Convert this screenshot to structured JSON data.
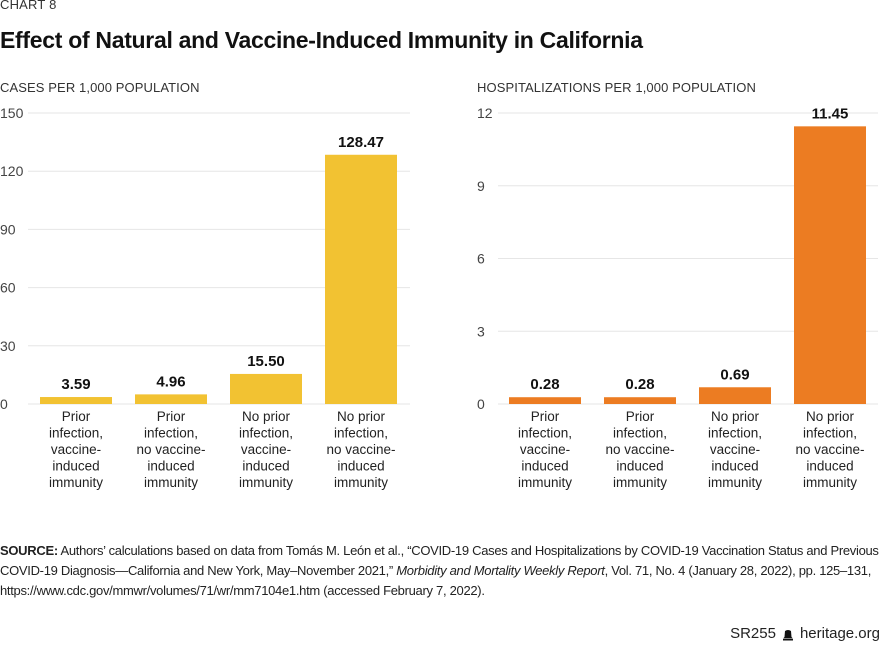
{
  "header": {
    "kicker": "CHART 8",
    "title": "Effect of Natural and Vaccine-Induced Immunity in California"
  },
  "chart_data": [
    {
      "type": "bar",
      "title": "CASES PER 1,000 POPULATION",
      "categories": [
        [
          "Prior",
          "infection,",
          "vaccine-",
          "induced",
          "immunity"
        ],
        [
          "Prior",
          "infection,",
          "no vaccine-",
          "induced",
          "immunity"
        ],
        [
          "No prior",
          "infection,",
          "vaccine-",
          "induced",
          "immunity"
        ],
        [
          "No prior",
          "infection,",
          "no vaccine-",
          "induced",
          "immunity"
        ]
      ],
      "values": [
        3.59,
        4.96,
        15.5,
        128.47
      ],
      "value_labels": [
        "3.59",
        "4.96",
        "15.50",
        "128.47"
      ],
      "yticks": [
        "0",
        "30",
        "60",
        "90",
        "120",
        "150"
      ],
      "ytick_values": [
        0,
        30,
        60,
        90,
        120,
        150
      ],
      "ylim": [
        0,
        150
      ],
      "grid": true,
      "color": "#F2C232"
    },
    {
      "type": "bar",
      "title": "HOSPITALIZATIONS PER 1,000 POPULATION",
      "categories": [
        [
          "Prior",
          "infection,",
          "vaccine-",
          "induced",
          "immunity"
        ],
        [
          "Prior",
          "infection,",
          "no vaccine-",
          "induced",
          "immunity"
        ],
        [
          "No prior",
          "infection,",
          "vaccine-",
          "induced",
          "immunity"
        ],
        [
          "No prior",
          "infection,",
          "no vaccine-",
          "induced",
          "immunity"
        ]
      ],
      "values": [
        0.28,
        0.28,
        0.69,
        11.45
      ],
      "value_labels": [
        "0.28",
        "0.28",
        "0.69",
        "11.45"
      ],
      "yticks": [
        "0",
        "3",
        "6",
        "9",
        "12"
      ],
      "ytick_values": [
        0,
        3,
        6,
        9,
        12
      ],
      "ylim": [
        0,
        12
      ],
      "grid": true,
      "color": "#EC7C22"
    }
  ],
  "source": {
    "label": "SOURCE:",
    "text_1": " Authors’ calculations based on data from Tomás M. León et al., “COVID-19 Cases and Hospitalizations by COVID-19 Vaccination Status and Previous COVID-19 Diagnosis—California and New York, May–November 2021,” ",
    "journal": "Morbidity and Mortality Weekly Report",
    "text_2": ", Vol. 71, No. 4 (January 28, 2022), pp. 125–131, https://www.cdc.gov/mmwr/volumes/71/wr/mm7104e1.htm (accessed February 7, 2022)."
  },
  "footer": {
    "report_id": "SR255",
    "icon": "liberty-bell-icon",
    "site": "heritage.org"
  }
}
